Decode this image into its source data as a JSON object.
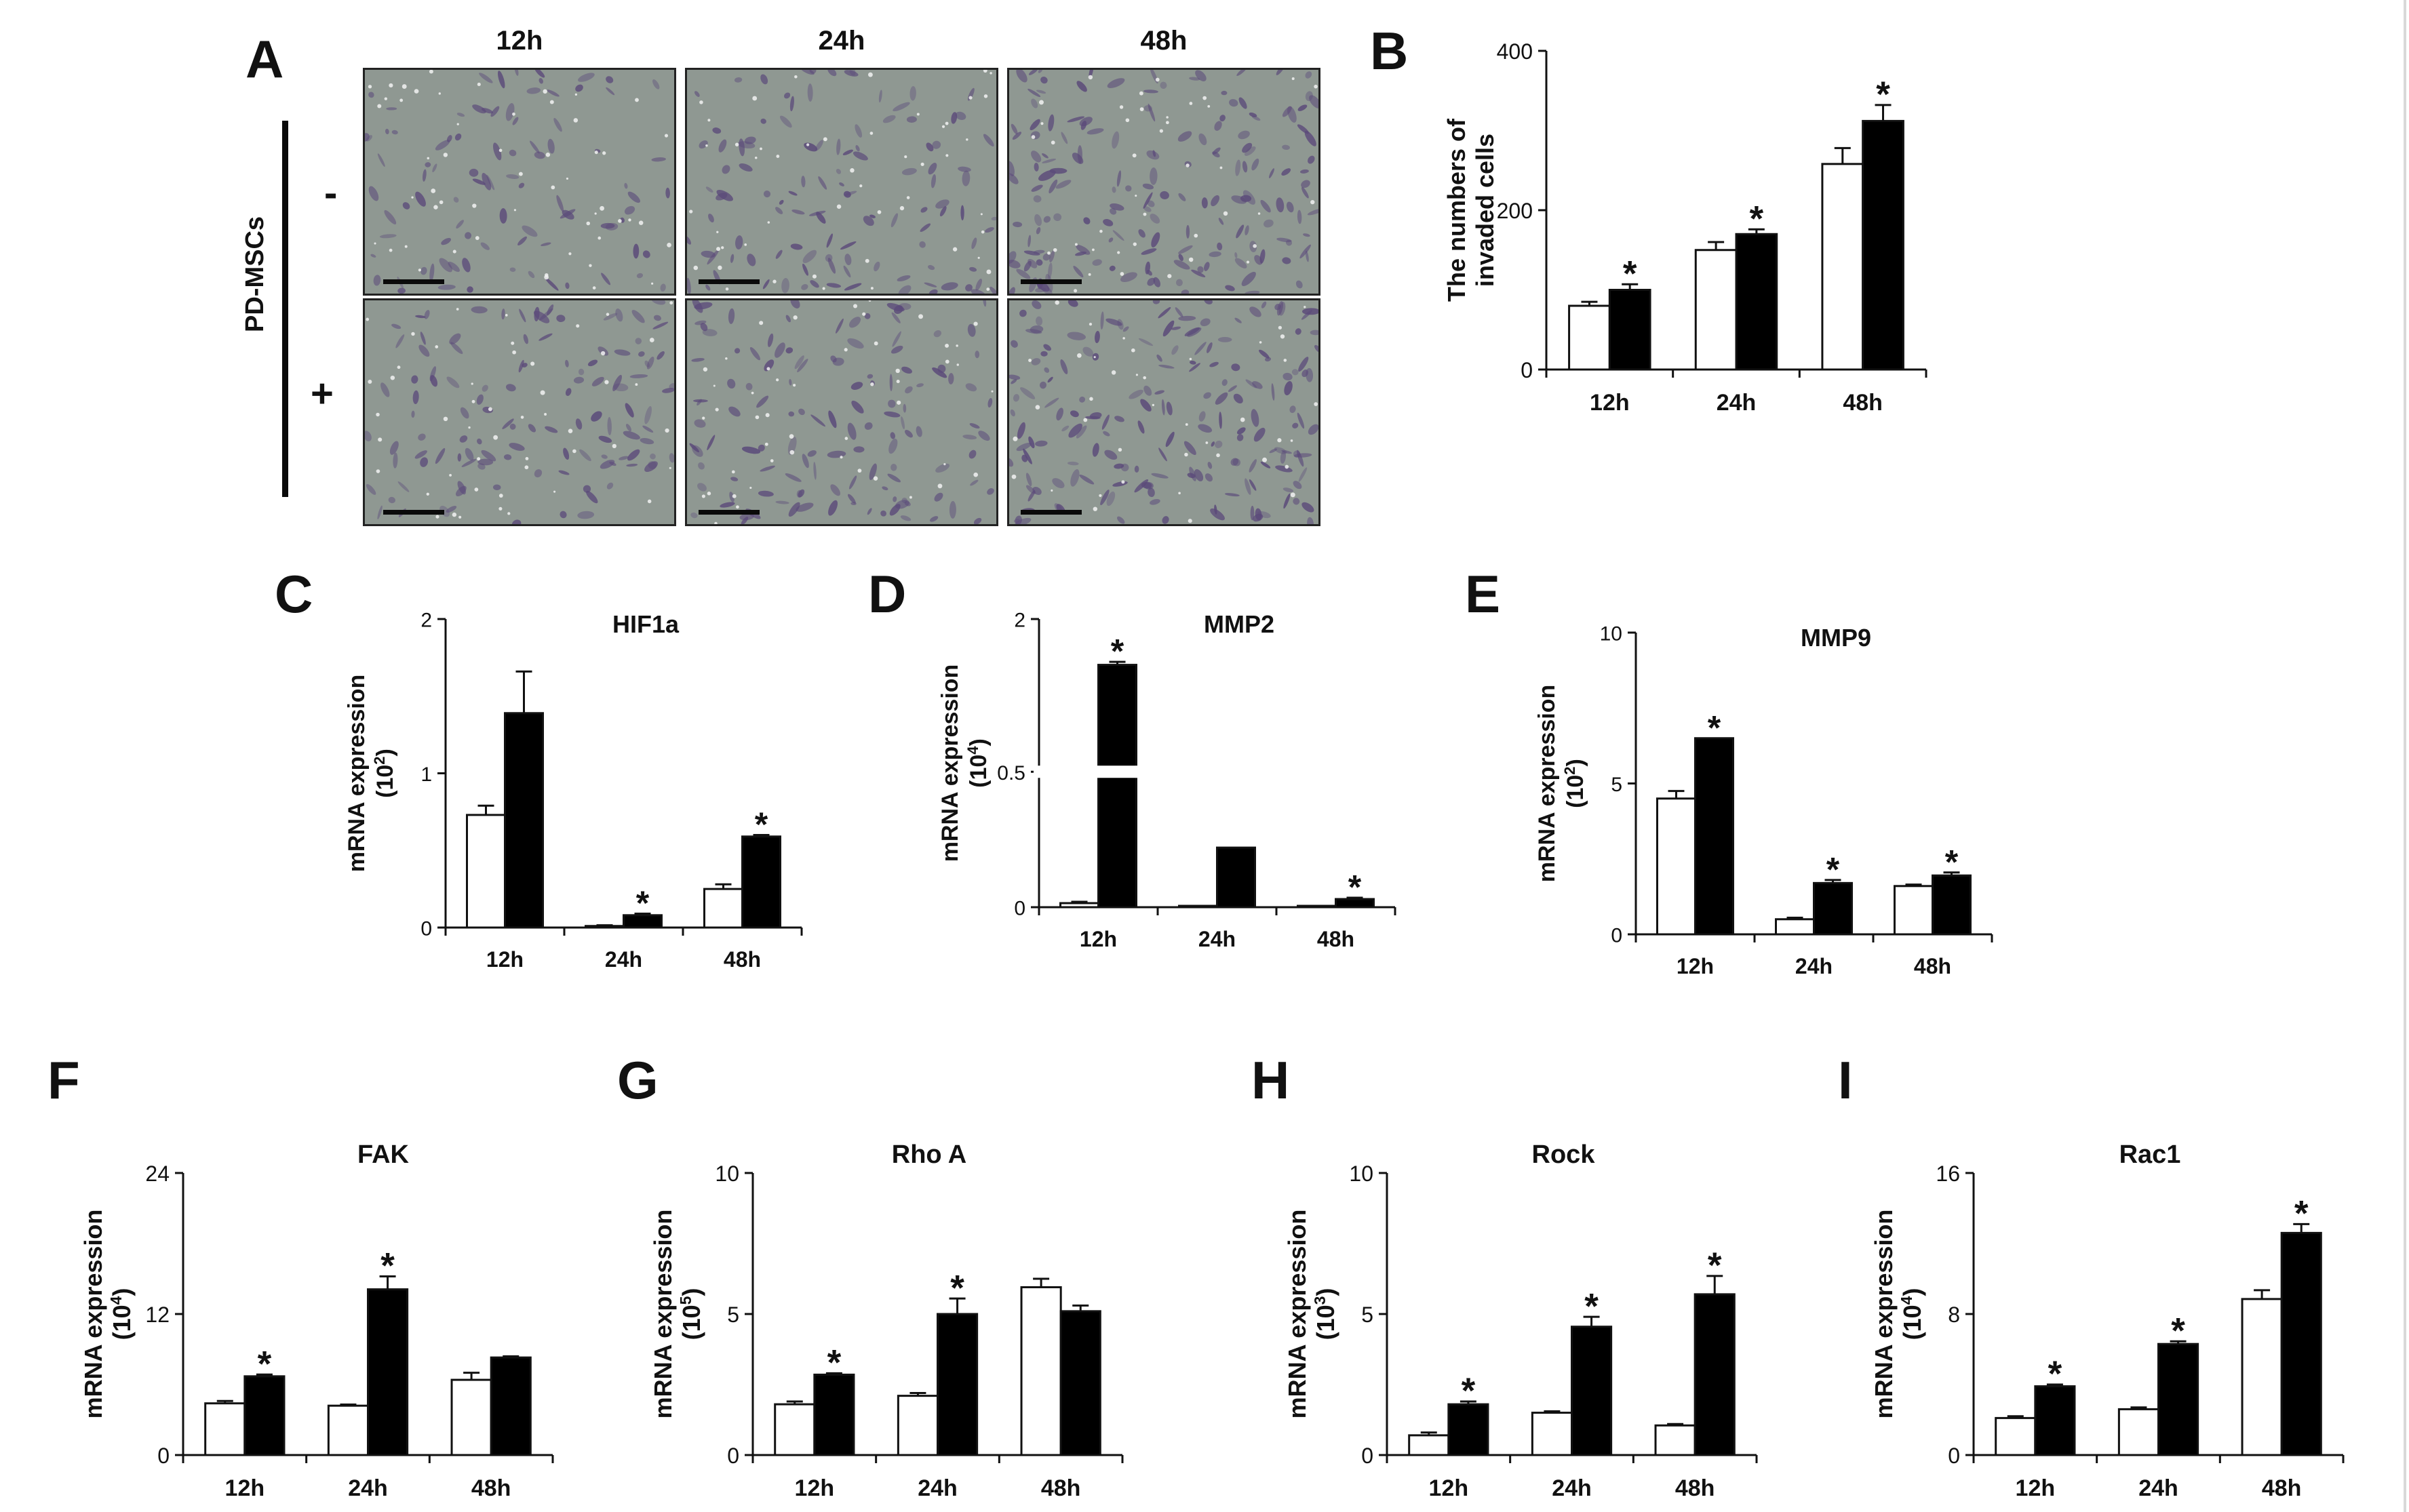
{
  "panel_a": {
    "letter": "A",
    "time_headers": [
      "12h",
      "24h",
      "48h"
    ],
    "condition_title": "PD-MSCs",
    "row_labels": [
      "-",
      "+"
    ],
    "row_densities": [
      [
        0.35,
        0.5,
        0.95
      ],
      [
        0.55,
        0.6,
        1.0
      ]
    ],
    "tile_colors": {
      "background": "#8f9892",
      "cell": "#5b4a7a",
      "debris": "#f2f2f2"
    }
  },
  "chart_data": [
    {
      "id": "B",
      "letter": "B",
      "type": "bar",
      "title": "",
      "ylabel": "The numbers of invaded cells",
      "ylabel_lines": [
        "The numbers of",
        "invaded cells"
      ],
      "ylabel_exp": "",
      "ylim": [
        0,
        400
      ],
      "yticks": [
        "0",
        "200",
        "400"
      ],
      "categories": [
        "12h",
        "24h",
        "48h"
      ],
      "series": [
        {
          "values": [
            80,
            150,
            258
          ],
          "errors": [
            5,
            10,
            20
          ],
          "color": "#ffffff"
        },
        {
          "values": [
            100,
            170,
            312
          ],
          "errors": [
            7,
            6,
            20
          ],
          "color": "#000000"
        }
      ],
      "significance": [
        "*",
        "*",
        "*"
      ],
      "axis_break": null
    },
    {
      "id": "C",
      "letter": "C",
      "type": "bar",
      "title": "HIF1a",
      "ylabel": "mRNA expression",
      "ylabel_lines": [
        "mRNA expression",
        "(10"
      ],
      "ylabel_exp": "2",
      "ylim": [
        0,
        2
      ],
      "yticks": [
        "0",
        "1",
        "2"
      ],
      "categories": [
        "12h",
        "24h",
        "48h"
      ],
      "series": [
        {
          "values": [
            0.73,
            0.01,
            0.25
          ],
          "errors": [
            0.06,
            0.005,
            0.03
          ],
          "color": "#ffffff"
        },
        {
          "values": [
            1.39,
            0.08,
            0.59
          ],
          "errors": [
            0.27,
            0.01,
            0.01
          ],
          "color": "#000000"
        }
      ],
      "significance": [
        "",
        "*",
        "*"
      ],
      "axis_break": null
    },
    {
      "id": "D",
      "letter": "D",
      "type": "bar",
      "title": "MMP2",
      "ylabel": "mRNA expression",
      "ylabel_lines": [
        "mRNA expression",
        "(10"
      ],
      "ylabel_exp": "4",
      "ylim": [
        0,
        2
      ],
      "yticks": [
        "0",
        "0.5",
        "2"
      ],
      "categories": [
        "12h",
        "24h",
        "48h"
      ],
      "series": [
        {
          "values": [
            0.015,
            0.005,
            0.005
          ],
          "errors": [
            0.005,
            0,
            0
          ],
          "color": "#ffffff"
        },
        {
          "values": [
            1.55,
            0.22,
            0.03
          ],
          "errors": [
            0.03,
            0,
            0.005
          ],
          "color": "#000000"
        }
      ],
      "significance": [
        "*",
        "",
        "*"
      ],
      "axis_break": {
        "lower_max": 0.5,
        "upper_min": 0.5,
        "upper_max": 2
      }
    },
    {
      "id": "E",
      "letter": "E",
      "type": "bar",
      "title": "MMP9",
      "ylabel": "mRNA expression",
      "ylabel_lines": [
        "mRNA expression",
        "(10"
      ],
      "ylabel_exp": "2",
      "ylim": [
        0,
        10
      ],
      "yticks": [
        "0",
        "5",
        "10"
      ],
      "categories": [
        "12h",
        "24h",
        "48h"
      ],
      "series": [
        {
          "values": [
            4.5,
            0.5,
            1.6
          ],
          "errors": [
            0.25,
            0.05,
            0.05
          ],
          "color": "#ffffff"
        },
        {
          "values": [
            6.5,
            1.7,
            1.95
          ],
          "errors": [
            0,
            0.1,
            0.1
          ],
          "color": "#000000"
        }
      ],
      "significance": [
        "*",
        "*",
        "*"
      ],
      "axis_break": null
    },
    {
      "id": "F",
      "letter": "F",
      "type": "bar",
      "title": "FAK",
      "ylabel": "mRNA expression",
      "ylabel_lines": [
        "mRNA expression",
        "(10"
      ],
      "ylabel_exp": "4",
      "ylim": [
        0,
        24
      ],
      "yticks": [
        "0",
        "12",
        "24"
      ],
      "categories": [
        "12h",
        "24h",
        "48h"
      ],
      "series": [
        {
          "values": [
            4.4,
            4.2,
            6.4
          ],
          "errors": [
            0.2,
            0.1,
            0.6
          ],
          "color": "#ffffff"
        },
        {
          "values": [
            6.7,
            14.1,
            8.3
          ],
          "errors": [
            0.15,
            1.1,
            0.1
          ],
          "color": "#000000"
        }
      ],
      "significance": [
        "*",
        "*",
        ""
      ],
      "axis_break": null
    },
    {
      "id": "G",
      "letter": "G",
      "type": "bar",
      "title": "Rho A",
      "ylabel": "mRNA expression",
      "ylabel_lines": [
        "mRNA expression",
        "(10"
      ],
      "ylabel_exp": "5",
      "ylim": [
        0,
        10
      ],
      "yticks": [
        "0",
        "5",
        "10"
      ],
      "categories": [
        "12h",
        "24h",
        "48h"
      ],
      "series": [
        {
          "values": [
            1.8,
            2.1,
            5.95
          ],
          "errors": [
            0.1,
            0.1,
            0.3
          ],
          "color": "#ffffff"
        },
        {
          "values": [
            2.85,
            5.0,
            5.1
          ],
          "errors": [
            0.05,
            0.55,
            0.2
          ],
          "color": "#000000"
        }
      ],
      "significance": [
        "*",
        "*",
        ""
      ],
      "axis_break": null
    },
    {
      "id": "H",
      "letter": "H",
      "type": "bar",
      "title": "Rock",
      "ylabel": "mRNA expression",
      "ylabel_lines": [
        "mRNA expression",
        "(10"
      ],
      "ylabel_exp": "3",
      "ylim": [
        0,
        10
      ],
      "yticks": [
        "0",
        "5",
        "10"
      ],
      "categories": [
        "12h",
        "24h",
        "48h"
      ],
      "series": [
        {
          "values": [
            0.7,
            1.5,
            1.05
          ],
          "errors": [
            0.1,
            0.05,
            0.05
          ],
          "color": "#ffffff"
        },
        {
          "values": [
            1.8,
            4.55,
            5.7
          ],
          "errors": [
            0.1,
            0.35,
            0.65
          ],
          "color": "#000000"
        }
      ],
      "significance": [
        "*",
        "*",
        "*"
      ],
      "axis_break": null
    },
    {
      "id": "I",
      "letter": "I",
      "type": "bar",
      "title": "Rac1",
      "ylabel": "mRNA expression",
      "ylabel_lines": [
        "mRNA expression",
        "(10"
      ],
      "ylabel_exp": "4",
      "ylim": [
        0,
        16
      ],
      "yticks": [
        "0",
        "8",
        "16"
      ],
      "categories": [
        "12h",
        "24h",
        "48h"
      ],
      "series": [
        {
          "values": [
            2.1,
            2.6,
            8.85
          ],
          "errors": [
            0.1,
            0.1,
            0.5
          ],
          "color": "#ffffff"
        },
        {
          "values": [
            3.9,
            6.3,
            12.6
          ],
          "errors": [
            0.1,
            0.15,
            0.5
          ],
          "color": "#000000"
        }
      ],
      "significance": [
        "*",
        "*",
        "*"
      ],
      "axis_break": null
    }
  ]
}
